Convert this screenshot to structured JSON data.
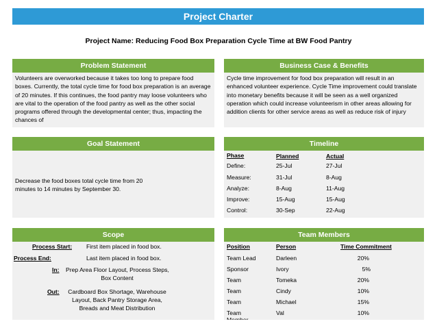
{
  "title": "Project Charter",
  "project_name": "Project Name: Reducing Food Box Preparation Cycle Time at BW Food Pantry",
  "problem": {
    "header": "Problem Statement",
    "text": "Volunteers are overworked because it takes too long to prepare food boxes.  Currently, the total cycle time for food box preparation is an average of 20 minutes. If this continues, the food pantry may loose volunteers who are vital to the operation of the food pantry as well as the other social programs offered through the developmental center; thus, impacting the chances of"
  },
  "business": {
    "header": "Business Case & Benefits",
    "text": "Cycle time improvement for food box preparation will result in an enhanced volunteer experience.  Cycle Time improvement could translate into monetary benefits because it will be seen as a well organized operation which could increase volunteerism in other areas allowing for addition clients for other service areas as well as reduce risk of injury"
  },
  "goal": {
    "header": "Goal Statement",
    "text": "Decrease the food boxes total cycle time from 20 minutes to 14 minutes by September 30."
  },
  "timeline": {
    "header": "Timeline",
    "columns": [
      "Phase",
      "Planned",
      "Actual"
    ],
    "rows": [
      {
        "phase": "Define:",
        "planned": "25-Jul",
        "actual": "27-Jul"
      },
      {
        "phase": "Measure:",
        "planned": "31-Jul",
        "actual": "8-Aug"
      },
      {
        "phase": "Analyze:",
        "planned": "8-Aug",
        "actual": "11-Aug"
      },
      {
        "phase": "Improve:",
        "planned": "15-Aug",
        "actual": "15-Aug"
      },
      {
        "phase": "Control:",
        "planned": "30-Sep",
        "actual": "22-Aug"
      }
    ]
  },
  "scope": {
    "header": "Scope",
    "start_label": "Process Start:",
    "start_value": "First item placed in food box.",
    "end_label": "Process End:",
    "end_value": "Last item placed in food box.",
    "in_label": "In:",
    "in_value_1": "Prep Area Floor Layout, Process Steps,",
    "in_value_2": "Box Content",
    "out_label": "Out:",
    "out_value_1": "Cardboard Box Shortage, Warehouse",
    "out_value_2": "Layout, Back Pantry Storage Area,",
    "out_value_3": "Breads and Meat Distribution"
  },
  "team": {
    "header": "Team Members",
    "columns": [
      "Position",
      "Person",
      "Time Commitment"
    ],
    "rows": [
      {
        "position": "Team Lead",
        "person": "Darleen",
        "time": "20%"
      },
      {
        "position": "Sponsor",
        "person": "Ivory",
        "time": "5%"
      },
      {
        "position": "Team Member",
        "person": "Tomeka",
        "time": "20%"
      },
      {
        "position": "Team Member",
        "person": "Cindy",
        "time": "10%"
      },
      {
        "position": "Team Member",
        "person": "Michael",
        "time": "15%"
      },
      {
        "position": "Team Member",
        "person": "Val",
        "time": "10%"
      }
    ]
  }
}
